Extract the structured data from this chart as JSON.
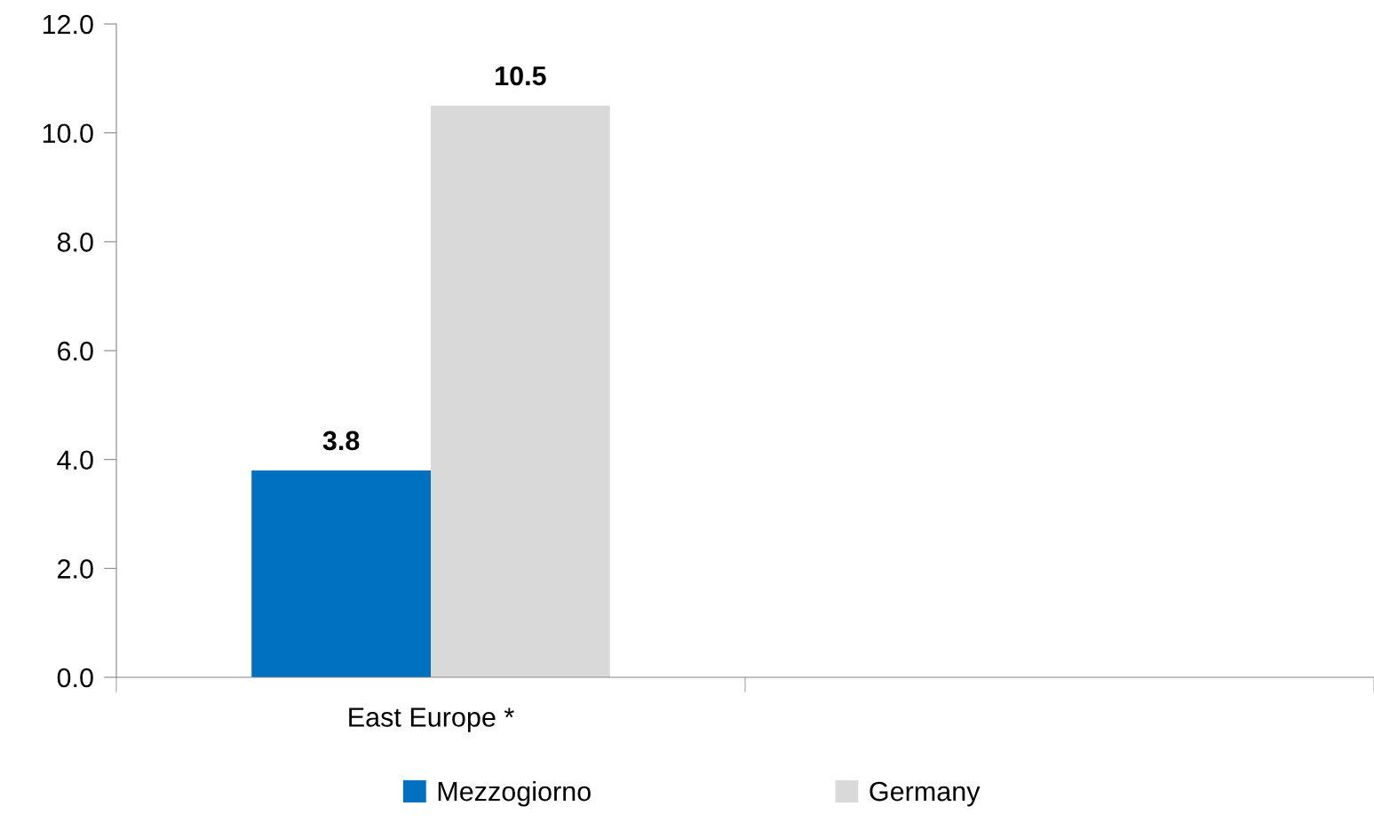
{
  "chart_data": {
    "type": "bar",
    "categories": [
      "East Europe *",
      null
    ],
    "series": [
      {
        "name": "Mezzogiorno",
        "color": "#0070c0",
        "values": [
          3.8,
          null
        ]
      },
      {
        "name": "Germany",
        "color": "#d9d9d9",
        "values": [
          10.5,
          null
        ]
      }
    ],
    "ylim": [
      0,
      12
    ],
    "yticks": [
      {
        "value": 0,
        "label": "0.0"
      },
      {
        "value": 2,
        "label": "2.0"
      },
      {
        "value": 4,
        "label": "4.0"
      },
      {
        "value": 6,
        "label": "6.0"
      },
      {
        "value": 8,
        "label": "8.0"
      },
      {
        "value": 10,
        "label": "10.0"
      },
      {
        "value": 12,
        "label": "12.0"
      }
    ],
    "data_labels": true,
    "grid": false,
    "legend": "bottom"
  }
}
